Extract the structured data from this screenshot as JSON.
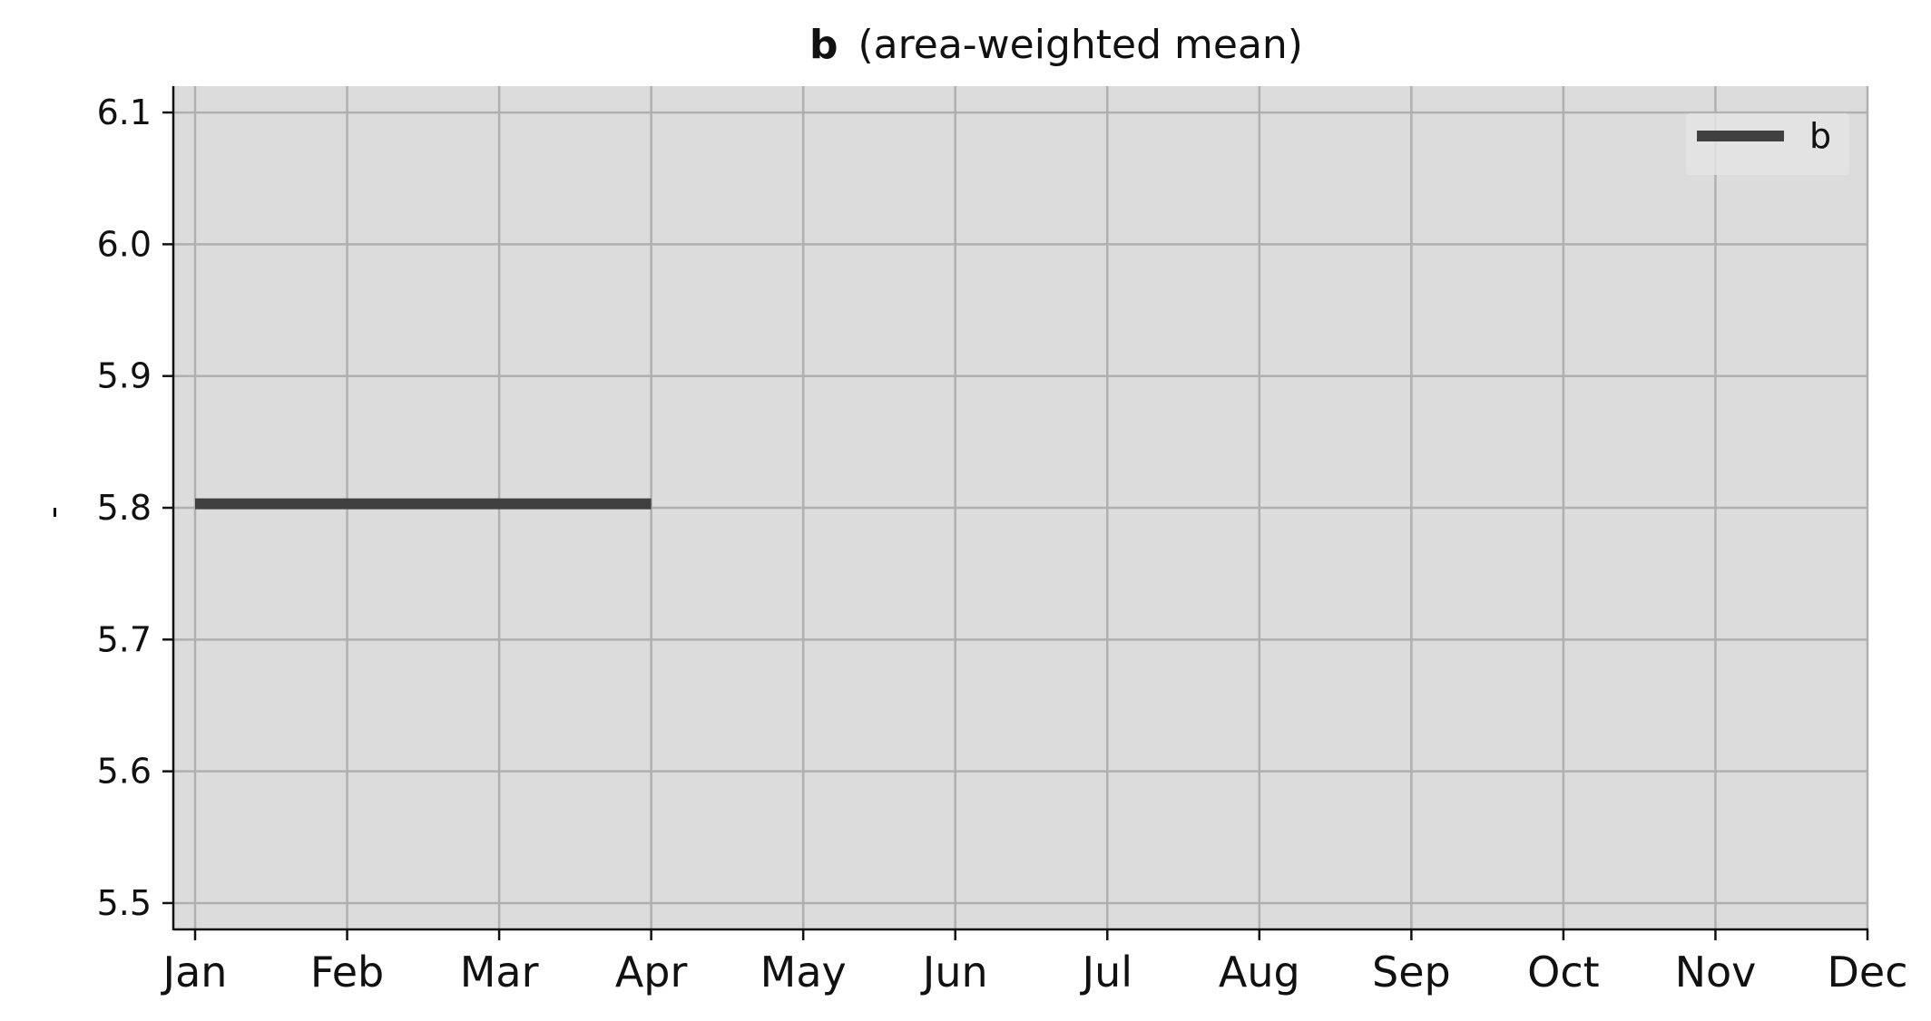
{
  "chart_data": {
    "type": "line",
    "title_bold": "b",
    "title_rest": "(area-weighted mean)",
    "xlabel": "",
    "ylabel": "-",
    "x_categories": [
      "Jan",
      "Feb",
      "Mar",
      "Apr",
      "May",
      "Jun",
      "Jul",
      "Aug",
      "Sep",
      "Oct",
      "Nov",
      "Dec"
    ],
    "ylim": [
      5.48,
      6.12
    ],
    "y_ticks": [
      5.5,
      5.6,
      5.7,
      5.8,
      5.9,
      6.0,
      6.1
    ],
    "y_tick_labels": [
      "5.5",
      "5.6",
      "5.7",
      "5.8",
      "5.9",
      "6.0",
      "6.1"
    ],
    "grid": true,
    "legend_position": "top-right",
    "colors": {
      "plot_background": "#dcdcdc",
      "grid": "#b0b0b0",
      "series": "#404040"
    },
    "series": [
      {
        "name": "b",
        "x_start": "Jan",
        "x_end": "Apr",
        "values": [
          5.803,
          5.803,
          5.803,
          5.803
        ]
      }
    ]
  }
}
